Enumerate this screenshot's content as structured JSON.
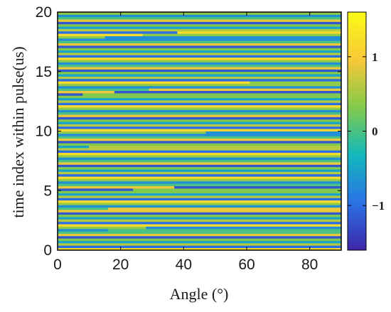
{
  "chart_data": {
    "type": "heatmap",
    "title": "",
    "xlabel": "Angle (°)",
    "ylabel": "time index within pulse(us)",
    "xlim": [
      0,
      90
    ],
    "ylim": [
      0,
      20
    ],
    "x_ticks": [
      "0",
      "20",
      "40",
      "60",
      "80"
    ],
    "y_ticks": [
      "0",
      "5",
      "10",
      "15",
      "20"
    ],
    "colorbar": {
      "range": [
        -1.6,
        1.6
      ],
      "ticks": [
        "-1",
        "0",
        "1"
      ],
      "colors": [
        "#3e26a8",
        "#2a72e6",
        "#13b9bc",
        "#82ca4a",
        "#f8c838",
        "#f9fb15"
      ]
    },
    "row_count": 100,
    "row_value_pattern": [
      1.2,
      -1.0,
      0.6,
      -0.5,
      0.3,
      -1.2,
      0.9,
      0.0,
      -0.7,
      0.4
    ],
    "shifted_rows": [
      {
        "row": 8,
        "switch_angle": 16
      },
      {
        "row": 9,
        "switch_angle": 28
      },
      {
        "row": 17,
        "switch_angle": 16
      },
      {
        "row": 25,
        "switch_angle": 24
      },
      {
        "row": 26,
        "switch_angle": 37
      },
      {
        "row": 43,
        "switch_angle": 10
      },
      {
        "row": 49,
        "switch_angle": 47
      },
      {
        "row": 65,
        "switch_angle": 8
      },
      {
        "row": 66,
        "switch_angle": 18
      },
      {
        "row": 67,
        "switch_angle": 29
      },
      {
        "row": 70,
        "switch_angle": 61
      },
      {
        "row": 89,
        "switch_angle": 15
      },
      {
        "row": 90,
        "switch_angle": 27
      },
      {
        "row": 91,
        "switch_angle": 38
      }
    ]
  }
}
